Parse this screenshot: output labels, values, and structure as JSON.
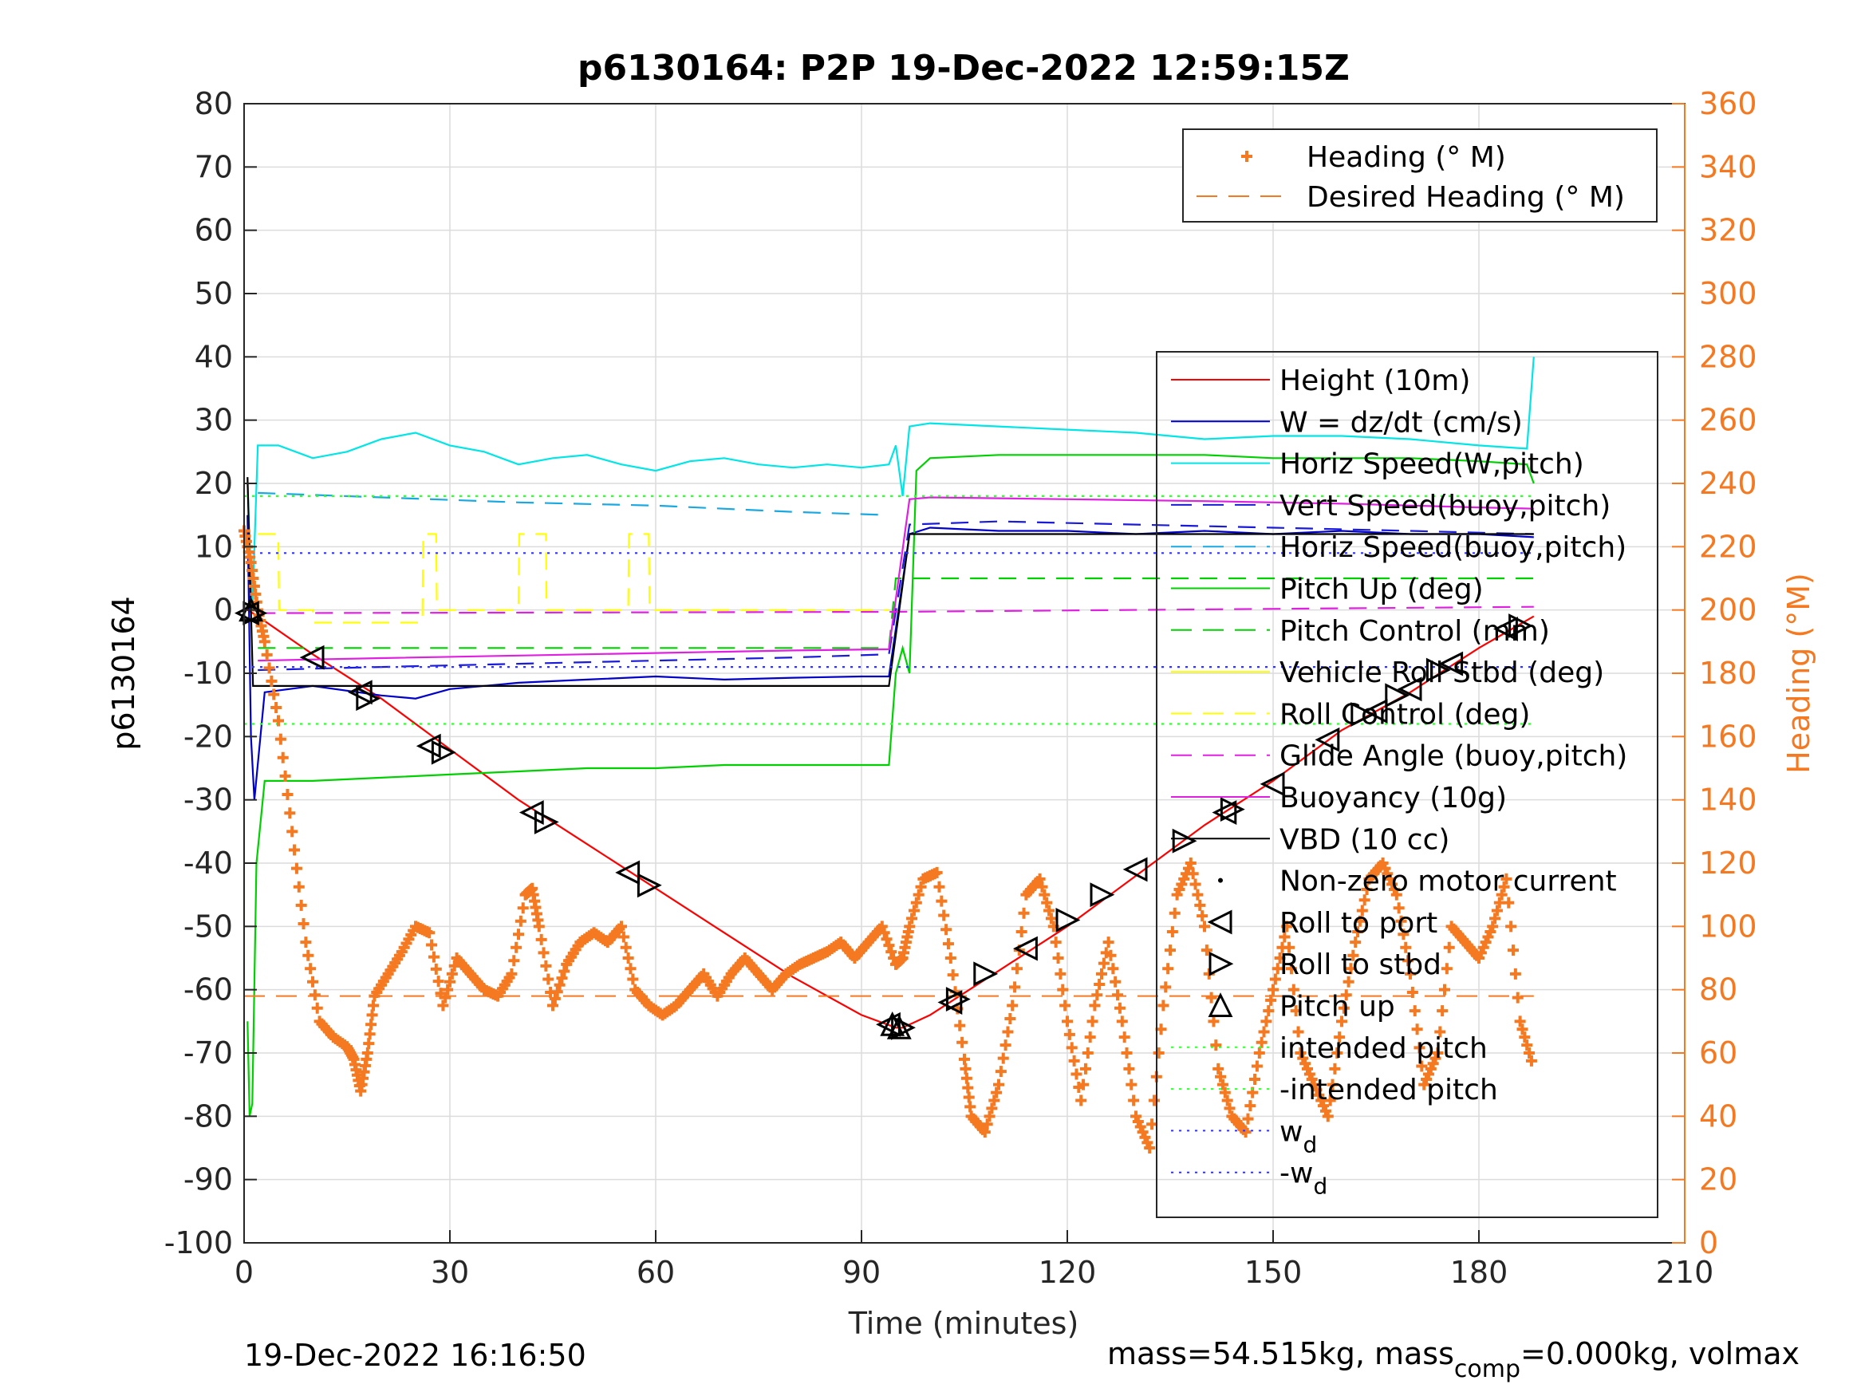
{
  "chart_data": {
    "type": "line",
    "title": "p6130164: P2P 19-Dec-2022 12:59:15Z",
    "xlabel": "Time (minutes)",
    "ylabel": "p6130164",
    "ylabel_right": "Heading (°M)",
    "xlim": [
      0,
      210
    ],
    "ylim": [
      -100,
      80
    ],
    "ylim_right": [
      0,
      360
    ],
    "x_ticks": [
      "0",
      "30",
      "60",
      "90",
      "120",
      "150",
      "180",
      "210"
    ],
    "y_ticks": [
      "80",
      "70",
      "60",
      "50",
      "40",
      "30",
      "20",
      "10",
      "0",
      "-10",
      "-20",
      "-30",
      "-40",
      "-50",
      "-60",
      "-70",
      "-80",
      "-90",
      "-100"
    ],
    "y_ticks_right": [
      "360",
      "340",
      "320",
      "300",
      "280",
      "260",
      "240",
      "220",
      "200",
      "180",
      "160",
      "140",
      "120",
      "100",
      "80",
      "60",
      "40",
      "20",
      "0"
    ],
    "grid": true,
    "footer_left": "19-Dec-2022 16:16:50",
    "footer_right_parts": [
      "mass=54.515kg, mass",
      "comp",
      "=0.000kg, volmax"
    ],
    "legend_heading": [
      {
        "label": "Heading (° M)",
        "color": "#f47920",
        "style": "plus"
      },
      {
        "label": "Desired Heading (° M)",
        "color": "#f47920",
        "style": "dash"
      }
    ],
    "legend_main": [
      {
        "label": "Height (10m)",
        "color": "#ff0000",
        "style": "solid"
      },
      {
        "label": "W = dz/dt (cm/s)",
        "color": "#0000c8",
        "style": "solid"
      },
      {
        "label": "Horiz Speed(W,pitch)",
        "color": "#00e5e5",
        "style": "solid"
      },
      {
        "label": "Vert Speed(buoy,pitch)",
        "color": "#1a1ad9",
        "style": "dash"
      },
      {
        "label": "Horiz Speed(buoy,pitch)",
        "color": "#1aa8e0",
        "style": "dash"
      },
      {
        "label": "Pitch Up (deg)",
        "color": "#00d000",
        "style": "solid"
      },
      {
        "label": "Pitch Control (mm)",
        "color": "#00d000",
        "style": "dash"
      },
      {
        "label": "Vehicle Roll Stbd (deg)",
        "color": "#ffff00",
        "style": "solid"
      },
      {
        "label": "Roll Control (deg)",
        "color": "#ffff00",
        "style": "dash"
      },
      {
        "label": "Glide Angle (buoy,pitch)",
        "color": "#e020e0",
        "style": "dash"
      },
      {
        "label": "Buoyancy (10g)",
        "color": "#e020e0",
        "style": "solid"
      },
      {
        "label": "VBD (10 cc)",
        "color": "#000000",
        "style": "solid"
      },
      {
        "label": "Non-zero motor current",
        "color": "#000000",
        "style": "dot"
      },
      {
        "label": "Roll to port",
        "color": "#000000",
        "style": "tri-left"
      },
      {
        "label": "Roll to stbd",
        "color": "#000000",
        "style": "tri-right"
      },
      {
        "label": "Pitch up",
        "color": "#000000",
        "style": "tri-up"
      },
      {
        "label": "intended pitch",
        "color": "#33ff33",
        "style": "dotted"
      },
      {
        "label": "-intended pitch",
        "color": "#33ff33",
        "style": "dotted"
      },
      {
        "label": "w",
        "sub": "d",
        "color": "#3333ff",
        "style": "dotted"
      },
      {
        "label": "-w",
        "sub": "d",
        "color": "#3333ff",
        "style": "dotted"
      }
    ],
    "series": [
      {
        "name": "Height (10m)",
        "color": "#ff0000",
        "kind": "line",
        "x": [
          0.5,
          2,
          10,
          20,
          30,
          40,
          50,
          60,
          70,
          80,
          90,
          95,
          96,
          100,
          110,
          120,
          130,
          140,
          150,
          160,
          170,
          180,
          188
        ],
        "y": [
          0,
          -1,
          -7,
          -14,
          -22,
          -30,
          -37,
          -44,
          -51,
          -58,
          -64,
          -66,
          -66,
          -64,
          -57,
          -50,
          -42,
          -34,
          -27,
          -19,
          -13,
          -6,
          -1
        ]
      },
      {
        "name": "W = dz/dt (cm/s)",
        "color": "#0000c8",
        "kind": "line",
        "x": [
          0.5,
          1,
          1.5,
          3,
          10,
          20,
          25,
          30,
          40,
          50,
          60,
          70,
          80,
          90,
          94,
          97,
          100,
          110,
          120,
          130,
          140,
          150,
          160,
          170,
          180,
          188
        ],
        "y": [
          15,
          -20,
          -30,
          -13,
          -12,
          -13.5,
          -14,
          -12.5,
          -11.5,
          -11,
          -10.5,
          -11,
          -10.7,
          -10.5,
          -10.5,
          12,
          13,
          12.5,
          12.5,
          12,
          12.5,
          12,
          12.5,
          12,
          12,
          11.5
        ]
      },
      {
        "name": "Horiz Speed(W,pitch)",
        "color": "#00e5e5",
        "kind": "line",
        "x": [
          0.5,
          1.2,
          2,
          5,
          10,
          15,
          20,
          25,
          30,
          35,
          40,
          45,
          50,
          55,
          60,
          65,
          70,
          75,
          80,
          85,
          90,
          94,
          95,
          96,
          97,
          100,
          110,
          120,
          130,
          140,
          150,
          160,
          170,
          180,
          187,
          188
        ],
        "y": [
          20,
          0,
          26,
          26,
          24,
          25,
          27,
          28,
          26,
          25,
          23,
          24,
          24.5,
          23,
          22,
          23.5,
          24,
          23,
          22.5,
          23,
          22.5,
          23,
          26,
          18,
          29,
          29.5,
          29,
          28.5,
          28,
          27,
          27.5,
          27.5,
          27,
          26,
          25.5,
          40
        ]
      },
      {
        "name": "Vert Speed(buoy,pitch)",
        "color": "#1a1ad9",
        "kind": "dash",
        "x": [
          2,
          20,
          40,
          60,
          80,
          94,
          97,
          110,
          130,
          150,
          170,
          188
        ],
        "y": [
          -9.5,
          -9,
          -8.5,
          -8,
          -7.5,
          -7,
          13.5,
          14,
          13.5,
          13,
          12.5,
          12
        ]
      },
      {
        "name": "Horiz Speed(buoy,pitch)",
        "color": "#1aa8e0",
        "kind": "dash",
        "x": [
          2,
          20,
          40,
          60,
          80,
          94
        ],
        "y": [
          18.5,
          17.8,
          17,
          16.5,
          15.5,
          15
        ]
      },
      {
        "name": "Pitch Up (deg)",
        "color": "#00d000",
        "kind": "line",
        "x": [
          0.5,
          0.8,
          1.2,
          1.8,
          3,
          10,
          20,
          30,
          40,
          50,
          60,
          70,
          80,
          90,
          94,
          95,
          96,
          97,
          98,
          100,
          110,
          120,
          130,
          140,
          150,
          160,
          170,
          180,
          187,
          188
        ],
        "y": [
          -65,
          -80,
          -78,
          -40,
          -27,
          -27,
          -26.5,
          -26,
          -25.5,
          -25,
          -25,
          -24.5,
          -24.5,
          -24.5,
          -24.5,
          -10,
          -6,
          -10,
          22,
          24,
          24.5,
          24.5,
          24.5,
          24.5,
          24,
          24,
          24,
          23.5,
          23,
          20
        ]
      },
      {
        "name": "Pitch Control (mm)",
        "color": "#00d000",
        "kind": "dash",
        "x": [
          2,
          94,
          95,
          100,
          188
        ],
        "y": [
          -6,
          -6,
          5,
          5,
          5
        ]
      },
      {
        "name": "Roll Control (deg)",
        "color": "#ffff00",
        "kind": "dash",
        "x": [
          2,
          5,
          5.1,
          10,
          10.1,
          26,
          26.1,
          28,
          28.1,
          40,
          40.1,
          44,
          44.1,
          56,
          56.1,
          59,
          59.1,
          94
        ],
        "y": [
          12,
          12,
          0,
          0,
          -2,
          -2,
          12,
          12,
          0,
          0,
          12,
          12,
          0,
          0,
          12,
          12,
          0,
          0
        ]
      },
      {
        "name": "Glide Angle (buoy,pitch)",
        "color": "#e020e0",
        "kind": "dash",
        "x": [
          2,
          94,
          188
        ],
        "y": [
          -0.5,
          -0.3,
          0.5
        ]
      },
      {
        "name": "Buoyancy (10g)",
        "color": "#e020e0",
        "kind": "line",
        "x": [
          2,
          20,
          40,
          60,
          80,
          94,
          97,
          100,
          120,
          140,
          160,
          180,
          188
        ],
        "y": [
          -8,
          -7.6,
          -7.2,
          -6.8,
          -6.4,
          -6.2,
          17.5,
          17.8,
          17.5,
          17.2,
          16.8,
          16.2,
          16
        ]
      },
      {
        "name": "VBD (10 cc)",
        "color": "#000000",
        "kind": "line",
        "x": [
          0.5,
          1,
          1.3,
          94,
          97,
          188
        ],
        "y": [
          21,
          0,
          -12,
          -12,
          12,
          12
        ]
      },
      {
        "name": "intended pitch",
        "color": "#33ff33",
        "kind": "dotted",
        "x": [
          0,
          188
        ],
        "y": [
          18,
          18
        ]
      },
      {
        "name": "-intended pitch",
        "color": "#33ff33",
        "kind": "dotted",
        "x": [
          0,
          188
        ],
        "y": [
          -18,
          -18
        ]
      },
      {
        "name": "w_d",
        "color": "#3333ff",
        "kind": "dotted",
        "x": [
          0,
          188
        ],
        "y": [
          9,
          9
        ]
      },
      {
        "name": "-w_d",
        "color": "#3333ff",
        "kind": "dotted",
        "x": [
          0,
          188
        ],
        "y": [
          -9,
          -9
        ]
      }
    ],
    "roll_events": {
      "port": {
        "x": [
          0.5,
          10,
          17,
          27,
          42,
          56,
          94,
          103,
          114,
          130,
          143,
          150,
          158,
          165,
          170,
          176,
          184
        ],
        "y": [
          -0.5,
          -7.5,
          -13,
          -21.5,
          -32,
          -41.5,
          -65.5,
          -62,
          -53.5,
          -41,
          -32,
          -27.5,
          -20.5,
          -16,
          -12.5,
          -8.5,
          -3
        ]
      },
      "stbd": {
        "x": [
          1.5,
          18,
          29,
          44,
          59,
          96,
          104,
          108,
          120,
          125,
          137,
          144,
          163,
          168,
          174,
          186
        ],
        "y": [
          -0.5,
          -14,
          -22.5,
          -33.5,
          -43.5,
          -66,
          -61.5,
          -57.5,
          -49,
          -45,
          -36.5,
          -31.5,
          -16.5,
          -13.5,
          -9.5,
          -2.5
        ]
      },
      "pitch_up": {
        "x": [
          1,
          94.5,
          95.5
        ],
        "y": [
          0,
          -65.5,
          -66
        ]
      }
    },
    "heading": {
      "name": "Heading (° M)",
      "x": [
        0,
        1,
        2,
        3,
        5,
        7,
        9,
        11,
        13,
        15,
        16,
        17,
        18,
        19,
        21,
        23,
        25,
        27,
        29,
        31,
        33,
        35,
        37,
        39,
        41,
        42,
        43,
        45,
        47,
        49,
        51,
        53,
        55,
        57,
        59,
        61,
        63,
        65,
        67,
        69,
        71,
        73,
        75,
        77,
        79,
        81,
        83,
        85,
        87,
        89,
        91,
        93,
        95,
        96,
        97,
        99,
        101,
        103,
        105,
        106,
        108,
        110,
        112,
        114,
        116,
        118,
        120,
        122,
        124,
        126,
        128,
        130,
        132,
        134,
        136,
        138,
        140,
        142,
        144,
        146,
        148,
        150,
        152,
        154,
        156,
        158,
        160,
        162,
        164,
        166,
        168,
        170,
        172,
        174,
        176,
        178,
        180,
        182,
        184,
        186,
        188
      ],
      "y": [
        225,
        215,
        200,
        190,
        165,
        130,
        95,
        70,
        65,
        62,
        58,
        48,
        60,
        78,
        85,
        92,
        100,
        98,
        75,
        90,
        85,
        80,
        78,
        85,
        110,
        112,
        100,
        75,
        88,
        95,
        98,
        95,
        100,
        80,
        75,
        72,
        75,
        80,
        85,
        78,
        85,
        90,
        85,
        80,
        85,
        88,
        90,
        92,
        95,
        90,
        95,
        100,
        88,
        90,
        100,
        115,
        117,
        90,
        58,
        40,
        35,
        50,
        75,
        110,
        115,
        100,
        70,
        45,
        75,
        95,
        70,
        40,
        30,
        75,
        110,
        120,
        100,
        55,
        40,
        35,
        60,
        80,
        100,
        60,
        50,
        40,
        70,
        95,
        115,
        120,
        110,
        85,
        50,
        60,
        100,
        95,
        90,
        100,
        115,
        70,
        55
      ]
    },
    "desired_heading": {
      "name": "Desired Heading (° M)",
      "value": 78
    }
  }
}
